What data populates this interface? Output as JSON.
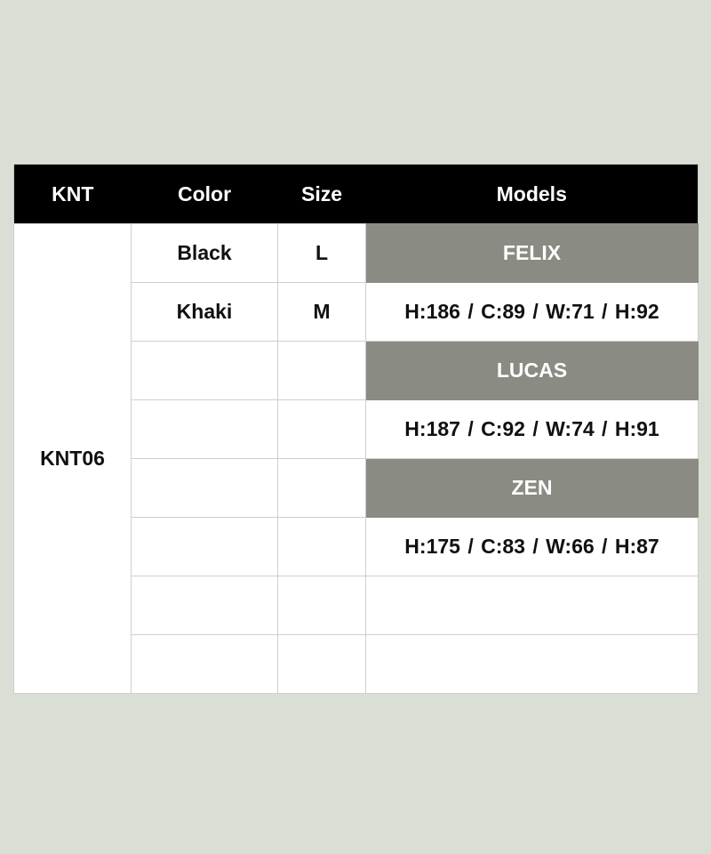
{
  "headers": [
    "KNT",
    "Color",
    "Size",
    "Models"
  ],
  "knt": "KNT06",
  "rows": [
    {
      "color": "Black",
      "size": "L",
      "model": "FELIX",
      "is_name": true
    },
    {
      "color": "Khaki",
      "size": "M",
      "model": "H:186 / C:89 / W:71 / H:92",
      "is_name": false
    },
    {
      "color": "",
      "size": "",
      "model": "LUCAS",
      "is_name": true
    },
    {
      "color": "",
      "size": "",
      "model": "H:187 / C:92 / W:74 / H:91",
      "is_name": false
    },
    {
      "color": "",
      "size": "",
      "model": "ZEN",
      "is_name": true
    },
    {
      "color": "",
      "size": "",
      "model": "H:175 / C:83 / W:66 / H:87",
      "is_name": false
    },
    {
      "color": "",
      "size": "",
      "model": "",
      "is_name": false
    },
    {
      "color": "",
      "size": "",
      "model": "",
      "is_name": false
    }
  ],
  "colors": {
    "header_bg": "#000000",
    "model_name_bg": "#8a8b83",
    "page_bg": "#dadfd5"
  }
}
